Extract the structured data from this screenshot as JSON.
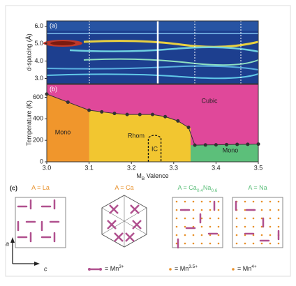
{
  "chart_data": [
    {
      "type": "heatmap",
      "panel": "(a)",
      "ylabel": "d-spacing (Å)",
      "ylim": [
        2.7,
        6.3
      ],
      "yticks": [
        {
          "value": 3,
          "label": "3.0"
        },
        {
          "value": 4,
          "label": "4.0"
        },
        {
          "value": 5,
          "label": "5.0"
        },
        {
          "value": 6,
          "label": "6.0"
        }
      ],
      "xlim": [
        3.0,
        3.5
      ]
    },
    {
      "type": "phase",
      "panel": "(b)",
      "xlabel": {
        "parts": [
          "M",
          "B",
          " Valence"
        ]
      },
      "ylabel": "Temperature (K)",
      "xlim": [
        3.0,
        3.5
      ],
      "ylim": [
        0,
        720
      ],
      "xticks": [
        {
          "value": 3,
          "label": "3.0"
        },
        3.1,
        3.2,
        3.3,
        3.4,
        3.5
      ],
      "yticks": [
        0,
        200,
        400,
        600
      ],
      "series": [
        {
          "color": "#333333",
          "x": [
            3.0,
            3.05,
            3.1,
            3.13,
            3.16,
            3.19,
            3.22,
            3.25,
            3.28,
            3.31,
            3.335
          ],
          "values": [
            630,
            555,
            480,
            465,
            450,
            440,
            440,
            440,
            420,
            380,
            320
          ]
        },
        {
          "color": "#333333",
          "x": [
            3.35,
            3.375,
            3.4,
            3.425,
            3.45,
            3.475,
            3.5
          ],
          "values": [
            155,
            157,
            158,
            160,
            162,
            163,
            165
          ]
        }
      ],
      "regions": [
        {
          "label": "Cubic",
          "color": "#e0489a"
        },
        {
          "label": "Mono",
          "color": "#f0962c",
          "xlim": [
            3.0,
            3.1
          ],
          "boundary": 0
        },
        {
          "label": "Rhom",
          "color": "#f2c630",
          "xlim": [
            3.1,
            3.34
          ],
          "boundary": 0
        },
        {
          "label": "Mono",
          "color": "#5cbf7a",
          "xlim": [
            3.34,
            3.5
          ],
          "boundary": 1
        }
      ],
      "ic": {
        "label": "IC",
        "xlim": [
          3.24,
          3.27
        ],
        "top": 250
      }
    }
  ],
  "structures": {
    "panel": "(c)",
    "axis_a": "a",
    "axis_c": "c",
    "items": [
      {
        "parts": [
          "A = La"
        ],
        "color": "#e8902a"
      },
      {
        "parts": [
          "A = Ca"
        ],
        "color": "#e8902a"
      },
      {
        "parts": [
          "A = Ca",
          "0.4",
          "Na",
          "0.6"
        ],
        "color": "#5cbf7a"
      },
      {
        "parts": [
          "A = Na"
        ],
        "color": "#5cbf7a"
      }
    ],
    "legend": [
      {
        "parts": [
          "= Mn",
          "3+"
        ]
      },
      {
        "parts": [
          "= Mn",
          "3.5+"
        ]
      },
      {
        "parts": [
          "= Mn",
          "4+"
        ]
      }
    ]
  }
}
